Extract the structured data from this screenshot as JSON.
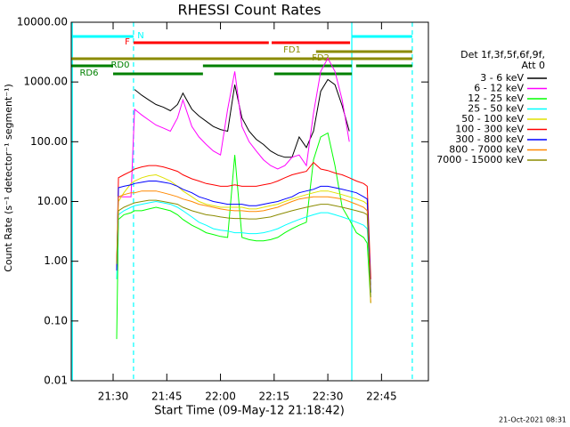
{
  "chart_data": {
    "type": "line",
    "title": "RHESSI Count Rates",
    "xlabel": "Start Time (09-May-12 21:18:42)",
    "ylabel": "Count Rate (s⁻¹ detector⁻¹ segment⁻¹)",
    "footer": "21-Oct-2021 08:31",
    "legend_title": [
      "Det 1f,3f,5f,6f,9f,",
      "Att 0"
    ],
    "ylog": true,
    "xlim": [
      18.3,
      118.1
    ],
    "ylim": [
      0.01,
      10000
    ],
    "xticks": [
      {
        "value": 30,
        "label": "21:30"
      },
      {
        "value": 45,
        "label": "21:45"
      },
      {
        "value": 60,
        "label": "22:00"
      },
      {
        "value": 75,
        "label": "22:15"
      },
      {
        "value": 90,
        "label": "22:30"
      },
      {
        "value": 105,
        "label": "22:45"
      }
    ],
    "yticks": [
      {
        "value": 0.01,
        "label": "0.01"
      },
      {
        "value": 0.1,
        "label": "0.10"
      },
      {
        "value": 1,
        "label": "1.00"
      },
      {
        "value": 10,
        "label": "10.00"
      },
      {
        "value": 100,
        "label": "100.00"
      },
      {
        "value": 1000,
        "label": "1000.00"
      },
      {
        "value": 10000,
        "label": "10000.00"
      }
    ],
    "x": [
      31,
      31.5,
      33,
      35,
      36,
      38,
      40,
      42,
      44,
      46,
      48,
      49.5,
      52,
      54,
      56,
      58,
      60,
      62,
      64,
      66,
      68,
      70,
      72,
      74,
      76,
      78,
      80,
      82,
      84,
      86,
      88,
      90,
      92,
      94,
      96,
      98,
      100,
      101,
      102
    ],
    "series": [
      {
        "name": "3 - 6 keV",
        "color": "#000000",
        "values": [
          null,
          null,
          null,
          null,
          750,
          600,
          500,
          420,
          380,
          330,
          420,
          650,
          350,
          270,
          220,
          180,
          160,
          150,
          900,
          250,
          150,
          110,
          90,
          70,
          60,
          55,
          55,
          120,
          80,
          150,
          700,
          1100,
          900,
          400,
          150,
          null,
          null,
          null,
          null
        ]
      },
      {
        "name": "6 - 12 keV",
        "color": "#ff00ff",
        "values": [
          null,
          12,
          12,
          12,
          350,
          280,
          230,
          190,
          170,
          150,
          250,
          500,
          180,
          120,
          90,
          70,
          60,
          350,
          1500,
          180,
          100,
          70,
          50,
          40,
          35,
          40,
          55,
          60,
          40,
          300,
          1500,
          2500,
          1500,
          500,
          100,
          null,
          null,
          null,
          null
        ]
      },
      {
        "name": "12 - 25 keV",
        "color": "#00ff00",
        "values": [
          0.05,
          5,
          6,
          6.5,
          7,
          7,
          7.5,
          8,
          7.5,
          7,
          6,
          5,
          4,
          3.5,
          3,
          2.8,
          2.6,
          2.5,
          60,
          2.5,
          2.3,
          2.2,
          2.2,
          2.3,
          2.5,
          3,
          3.5,
          4,
          4.5,
          50,
          120,
          140,
          40,
          8,
          5,
          3,
          2.5,
          2,
          0.2
        ]
      },
      {
        "name": "25 - 50 keV",
        "color": "#00ffff",
        "values": [
          0.5,
          6,
          7,
          8,
          8.5,
          9,
          9.5,
          10,
          9.5,
          9,
          8,
          7,
          5.5,
          4.5,
          4,
          3.5,
          3.3,
          3.2,
          3,
          3,
          2.9,
          2.9,
          3,
          3.2,
          3.5,
          4,
          4.5,
          5,
          5.5,
          6,
          6.5,
          6.5,
          6,
          5.5,
          5,
          4.5,
          4,
          3.5,
          0.3
        ]
      },
      {
        "name": "50 - 100 keV",
        "color": "#e0e000",
        "values": [
          0.8,
          10,
          14,
          20,
          22,
          25,
          27,
          28,
          25,
          22,
          18,
          15,
          12,
          10,
          9,
          8.5,
          8,
          8,
          8,
          8,
          7.5,
          7.5,
          8,
          8.5,
          9,
          10,
          11,
          12,
          13,
          14,
          15,
          15,
          14,
          13,
          12,
          11,
          10,
          9,
          0.4
        ]
      },
      {
        "name": "100 - 300 keV",
        "color": "#ff0000",
        "values": [
          0.7,
          25,
          28,
          32,
          35,
          38,
          40,
          40,
          38,
          35,
          32,
          28,
          24,
          22,
          20,
          19,
          18,
          18,
          19,
          18,
          18,
          18,
          19,
          20,
          22,
          25,
          28,
          30,
          32,
          45,
          35,
          33,
          30,
          28,
          25,
          22,
          20,
          18,
          0.5
        ]
      },
      {
        "name": "300 - 800 keV",
        "color": "#0000ff",
        "values": [
          0.7,
          17,
          18,
          19,
          20,
          21,
          22,
          22,
          21,
          20,
          18,
          16,
          14,
          12,
          11,
          10,
          9.5,
          9,
          9,
          9,
          8.5,
          8.5,
          9,
          9.5,
          10,
          11,
          12,
          14,
          15,
          16,
          18,
          18,
          17,
          16,
          15,
          14,
          12,
          11,
          0.3
        ]
      },
      {
        "name": "800 - 7000 keV",
        "color": "#ff8800",
        "values": [
          1,
          12,
          13,
          14,
          14,
          15,
          15,
          15,
          14,
          13,
          12,
          11,
          10,
          9,
          8.5,
          8,
          7.5,
          7.2,
          7,
          7,
          6.8,
          6.8,
          7,
          7.5,
          8,
          9,
          10,
          11,
          11.5,
          12,
          12,
          12,
          11.5,
          11,
          10,
          9,
          8,
          7,
          0.2
        ]
      },
      {
        "name": "7000 - 15000 keV",
        "color": "#8b8b00",
        "values": [
          0.9,
          7,
          8,
          9,
          9.5,
          10,
          10.5,
          10.5,
          10,
          9.5,
          9,
          8,
          7,
          6.5,
          6,
          5.8,
          5.5,
          5.3,
          5.2,
          5.2,
          5.1,
          5.1,
          5.3,
          5.5,
          6,
          6.5,
          7,
          7.5,
          8,
          8.5,
          9,
          9,
          8.5,
          8,
          7.5,
          7,
          6.5,
          6,
          0.25
        ]
      }
    ],
    "flags": [
      {
        "label": "N",
        "color": "#00ffff",
        "segments": [
          [
            18.3,
            35.7
          ],
          [
            96.7,
            113.6
          ]
        ]
      },
      {
        "label": "F",
        "color": "#ff0000",
        "segments": [
          [
            35.7,
            73.5
          ],
          [
            74.3,
            96.2
          ]
        ]
      },
      {
        "label": "FD1",
        "color": "#8b8b00",
        "segments": [
          [
            86.7,
            113.6
          ]
        ]
      },
      {
        "label": "FD2",
        "color": "#8b8b00",
        "segments": [
          [
            18.3,
            113.6
          ]
        ]
      },
      {
        "label": "RD0",
        "color": "#008000",
        "segments": [
          [
            18.3,
            30
          ],
          [
            55.1,
            96.7
          ],
          [
            97.9,
            113.6
          ]
        ]
      },
      {
        "label": "RD6",
        "color": "#008000",
        "segments": [
          [
            30,
            55.1
          ],
          [
            75,
            96.7
          ]
        ]
      }
    ],
    "vlines": [
      {
        "x": 18.6,
        "color": "#00ffff",
        "dashed": false
      },
      {
        "x": 35.7,
        "color": "#00ffff",
        "dashed": true
      },
      {
        "x": 96.7,
        "color": "#00ffff",
        "dashed": false
      },
      {
        "x": 113.6,
        "color": "#00ffff",
        "dashed": true
      }
    ]
  }
}
